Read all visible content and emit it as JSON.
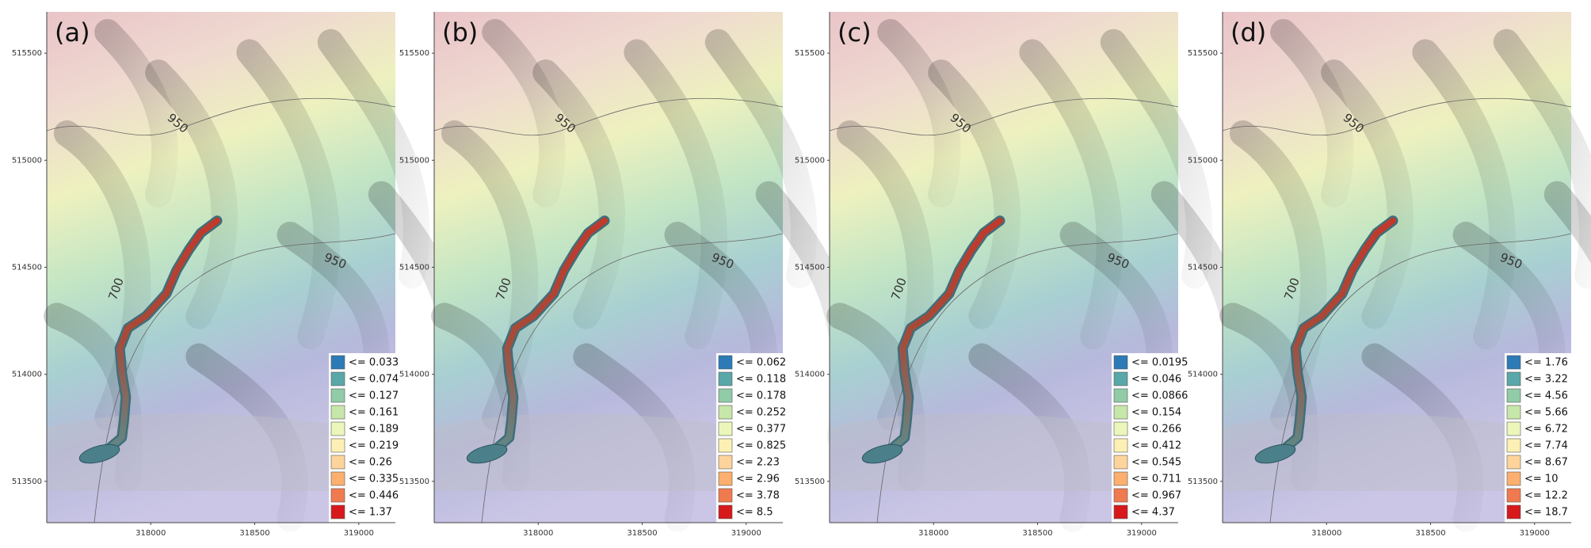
{
  "figure": {
    "xlim": [
      317500,
      319176
    ],
    "ylim": [
      513307,
      515693
    ],
    "xticks": [
      318000,
      318500,
      319000
    ],
    "yticks": [
      513500,
      514000,
      514500,
      515000,
      515500
    ],
    "contour_labels": [
      "950",
      "950",
      "700"
    ],
    "legend_colors": [
      "#2c7bb6",
      "#5aa7a9",
      "#91cba8",
      "#c7e6a9",
      "#ecf6bb",
      "#fdf0b4",
      "#fdd49c",
      "#fcaf6e",
      "#f07a4f",
      "#d7191c"
    ]
  },
  "panels": [
    {
      "label": "(a)",
      "legend": [
        "<= 0.033",
        "<= 0.074",
        "<= 0.127",
        "<= 0.161",
        "<= 0.189",
        "<= 0.219",
        "<= 0.26",
        "<= 0.335",
        "<= 0.446",
        "<= 1.37"
      ]
    },
    {
      "label": "(b)",
      "legend": [
        "<= 0.062",
        "<= 0.118",
        "<= 0.178",
        "<= 0.252",
        "<= 0.377",
        "<= 0.825",
        "<= 2.23",
        "<= 2.96",
        "<= 3.78",
        "<= 8.5"
      ]
    },
    {
      "label": "(c)",
      "legend": [
        "<= 0.0195",
        "<= 0.046",
        "<= 0.0866",
        "<= 0.154",
        "<= 0.266",
        "<= 0.412",
        "<= 0.545",
        "<= 0.711",
        "<= 0.967",
        "<= 4.37"
      ]
    },
    {
      "label": "(d)",
      "legend": [
        "<= 1.76",
        "<= 3.22",
        "<= 4.56",
        "<= 5.66",
        "<= 6.72",
        "<= 7.74",
        "<= 8.67",
        "<= 10",
        "<= 12.2",
        "<= 18.7"
      ]
    }
  ]
}
